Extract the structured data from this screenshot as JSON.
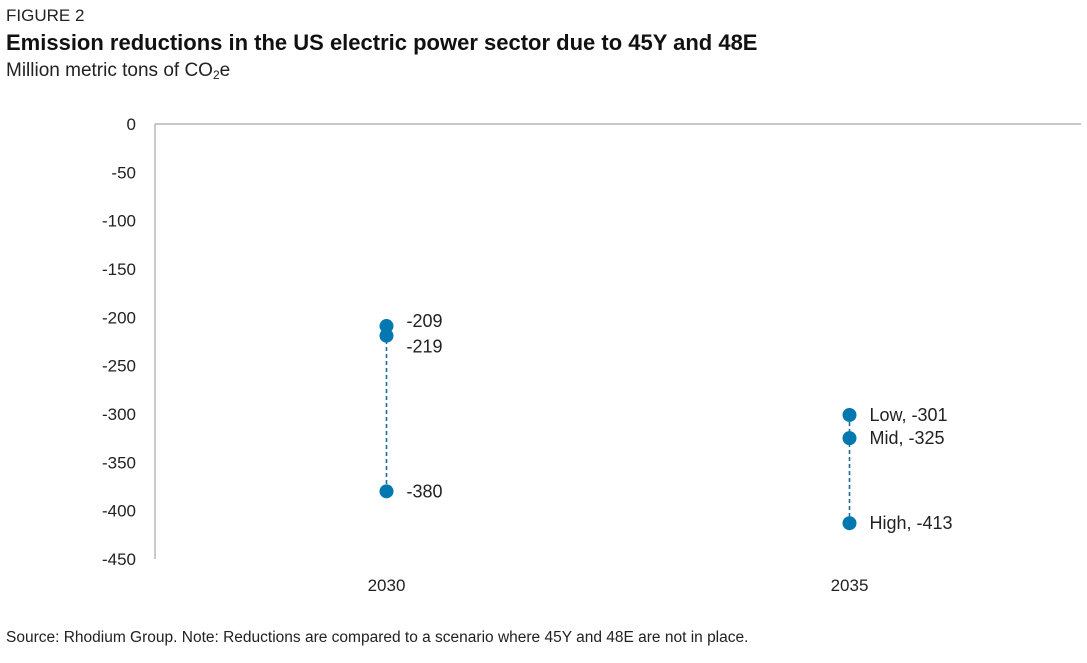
{
  "figure_label": "FIGURE 2",
  "title": "Emission reductions in the US electric power sector due to 45Y and 48E",
  "subtitle": {
    "prefix": "Million metric tons of CO",
    "subscript": "2",
    "suffix": "e"
  },
  "source": "Source: Rhodium Group. Note: Reductions are compared to a scenario where 45Y and 48E are not in place.",
  "chart_data": {
    "type": "scatter",
    "categories": [
      "2030",
      "2035"
    ],
    "y_ticks": [
      "0",
      "-50",
      "-100",
      "-150",
      "-200",
      "-250",
      "-300",
      "-350",
      "-400",
      "-450"
    ],
    "ylim": [
      -450,
      0
    ],
    "grid": false,
    "marker_color": "#0277b0",
    "line_color": "#1a6f95",
    "points": [
      {
        "x": "2030",
        "y": -209,
        "label": "-209"
      },
      {
        "x": "2030",
        "y": -219,
        "label": "-219"
      },
      {
        "x": "2030",
        "y": -380,
        "label": "-380"
      },
      {
        "x": "2035",
        "y": -301,
        "label": "Low, -301"
      },
      {
        "x": "2035",
        "y": -325,
        "label": "Mid, -325"
      },
      {
        "x": "2035",
        "y": -413,
        "label": "High, -413"
      }
    ]
  }
}
